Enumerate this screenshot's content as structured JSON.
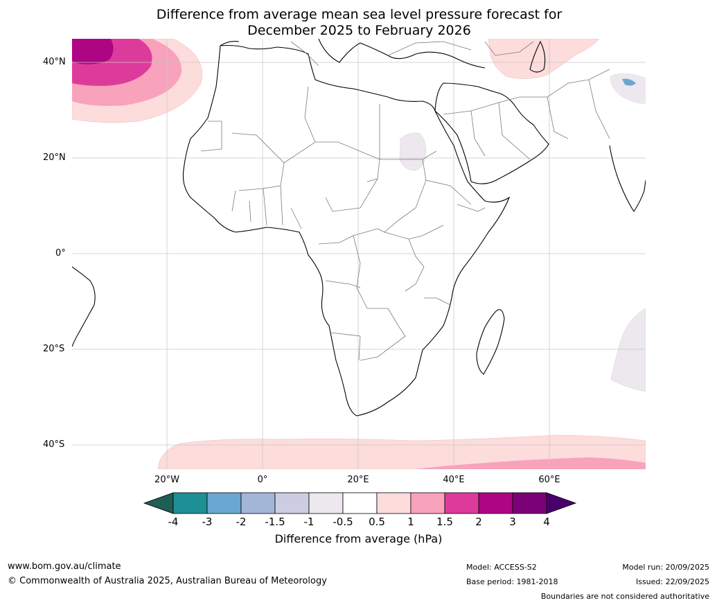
{
  "title": {
    "line1": "Difference from average mean sea level pressure forecast for",
    "line2": "December 2025 to February 2026"
  },
  "axes": {
    "lat_labels": [
      "40°N",
      "20°N",
      "0°",
      "20°S",
      "40°S"
    ],
    "lon_labels": [
      "20°W",
      "0°",
      "20°E",
      "40°E",
      "60°E"
    ]
  },
  "colorbar": {
    "ticks": [
      "-4",
      "-3",
      "-2",
      "-1.5",
      "-1",
      "-0.5",
      "0.5",
      "1",
      "1.5",
      "2",
      "3",
      "4"
    ],
    "colors": [
      "#1f5d55",
      "#1f8f96",
      "#6aa8d1",
      "#a4b6d8",
      "#cccde3",
      "#ece8ee",
      "#ffffff",
      "#fddcdc",
      "#f8a2bc",
      "#dd3b9b",
      "#ad0584",
      "#7a0177",
      "#49006a"
    ],
    "label": "Difference from average (hPa)"
  },
  "footer": {
    "website": "www.bom.gov.au/climate",
    "copyright": "© Commonwealth of Australia 2025, Australian Bureau of Meteorology",
    "model": "Model: ACCESS-S2",
    "base_period": "Base period: 1981-2018",
    "model_run": "Model run: 20/09/2025",
    "issued": "Issued: 22/09/2025",
    "disclaimer": "Boundaries are not considered authoritative"
  }
}
